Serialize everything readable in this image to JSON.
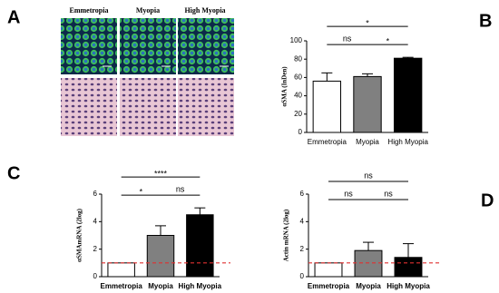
{
  "panels": [
    "A",
    "B",
    "C",
    "D"
  ],
  "image_columns": [
    "Emmetropia",
    "Myopia",
    "High Myopia"
  ],
  "chart_data": [
    {
      "type": "bar",
      "y_label": "αSMA (InDen)",
      "categories": [
        "Emmetropia",
        "Myopia",
        "High Myopia"
      ],
      "values": [
        56,
        61,
        81
      ],
      "errors": [
        9,
        3,
        1
      ],
      "colors": [
        "#ffffff",
        "#808080",
        "#000000"
      ],
      "ylim": [
        0,
        100
      ],
      "yticks": [
        0,
        20,
        40,
        60,
        80,
        100
      ],
      "annotations": [
        {
          "text": "ns",
          "categories": [
            "Emmetropia",
            "Myopia"
          ]
        },
        {
          "text": "*",
          "categories": [
            "Myopia",
            "High Myopia"
          ]
        },
        {
          "text": "*",
          "categories": [
            "Emmetropia",
            "High Myopia"
          ]
        }
      ]
    },
    {
      "type": "bar",
      "y_label": "αSMAmRNA (2log)",
      "categories": [
        "Emmetropia",
        "Myopia",
        "High Myopia"
      ],
      "values": [
        1,
        3,
        4.5
      ],
      "errors": [
        0,
        0.7,
        0.5
      ],
      "colors": [
        "#ffffff",
        "#808080",
        "#000000"
      ],
      "ylim": [
        0,
        6
      ],
      "yticks": [
        0,
        2,
        4,
        6
      ],
      "reference_line": {
        "value": 1,
        "color": "#e03030"
      },
      "annotations": [
        {
          "text": "*",
          "categories": [
            "Emmetropia",
            "Myopia"
          ]
        },
        {
          "text": "ns",
          "categories": [
            "Myopia",
            "High Myopia"
          ]
        },
        {
          "text": "****",
          "categories": [
            "Emmetropia",
            "High Myopia"
          ]
        }
      ]
    },
    {
      "type": "bar",
      "y_label": "Actin mRNA (2log)",
      "categories": [
        "Emmetropia",
        "Myopia",
        "High Myopia"
      ],
      "values": [
        1,
        1.9,
        1.4
      ],
      "errors": [
        0,
        0.6,
        1
      ],
      "colors": [
        "#ffffff",
        "#808080",
        "#000000"
      ],
      "ylim": [
        0,
        6
      ],
      "yticks": [
        0,
        2,
        4,
        6
      ],
      "reference_line": {
        "value": 1,
        "color": "#e03030"
      },
      "annotations": [
        {
          "text": "ns",
          "categories": [
            "Emmetropia",
            "Myopia"
          ]
        },
        {
          "text": "ns",
          "categories": [
            "Myopia",
            "High Myopia"
          ]
        },
        {
          "text": "ns",
          "categories": [
            "Emmetropia",
            "High Myopia"
          ]
        }
      ]
    }
  ]
}
